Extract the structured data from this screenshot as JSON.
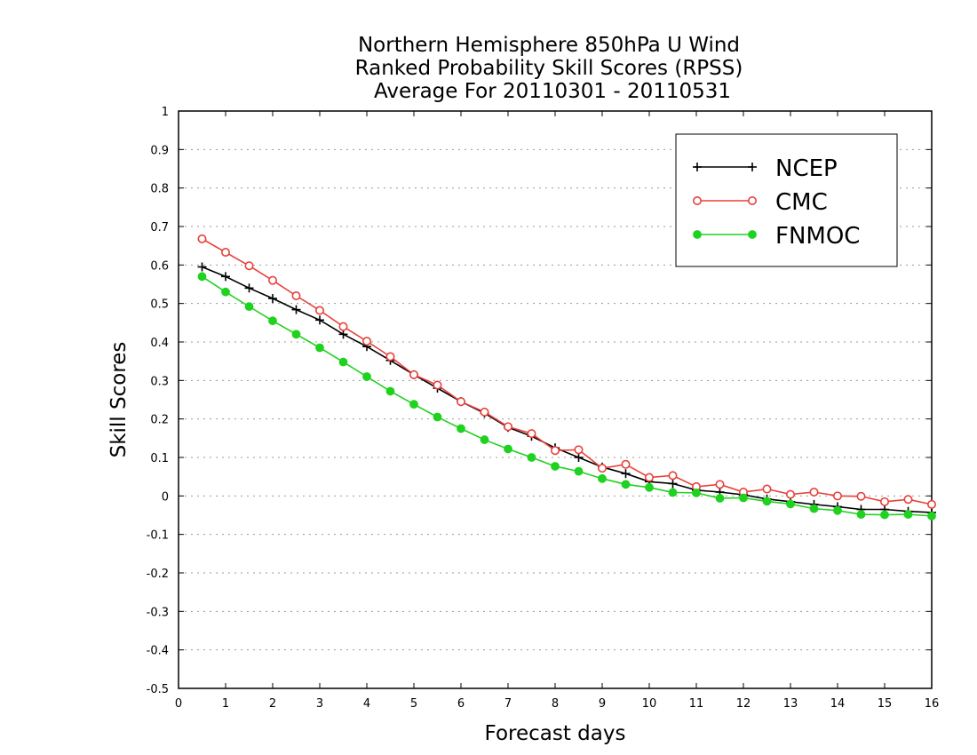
{
  "chart_data": {
    "type": "line",
    "title": [
      "Northern Hemisphere 850hPa U Wind",
      "Ranked Probability Skill Scores (RPSS)",
      "Average For 20110301 - 20110531"
    ],
    "xlabel": "Forecast days",
    "ylabel": "Skill Scores",
    "xlim": [
      0,
      16
    ],
    "ylim": [
      -0.5,
      1
    ],
    "xticks": [
      0,
      1,
      2,
      3,
      4,
      5,
      6,
      7,
      8,
      9,
      10,
      11,
      12,
      13,
      14,
      15,
      16
    ],
    "xtick_labels": [
      "0",
      "1",
      "2",
      "3",
      "4",
      "5",
      "6",
      "7",
      "8",
      "9",
      "10",
      "11",
      "12",
      "13",
      "14",
      "15",
      "16"
    ],
    "yticks": [
      -0.5,
      -0.4,
      -0.3,
      -0.2,
      -0.1,
      0,
      0.1,
      0.2,
      0.3,
      0.4,
      0.5,
      0.6,
      0.7,
      0.8,
      0.9,
      1
    ],
    "ytick_labels": [
      "-0.5",
      "-0.4",
      "-0.3",
      "-0.2",
      "-0.1",
      "0",
      "0.1",
      "0.2",
      "0.3",
      "0.4",
      "0.5",
      "0.6",
      "0.7",
      "0.8",
      "0.9",
      "1"
    ],
    "grid": "horizontal dotted",
    "legend_position": "top-right",
    "x": [
      0.5,
      1,
      1.5,
      2,
      2.5,
      3,
      3.5,
      4,
      4.5,
      5,
      5.5,
      6,
      6.5,
      7,
      7.5,
      8,
      8.5,
      9,
      9.5,
      10,
      10.5,
      11,
      11.5,
      12,
      12.5,
      13,
      13.5,
      14,
      14.5,
      15,
      15.5,
      16
    ],
    "series": [
      {
        "name": "NCEP",
        "color": "#000000",
        "marker": "plus",
        "values": [
          0.595,
          0.57,
          0.54,
          0.513,
          0.484,
          0.457,
          0.42,
          0.388,
          0.352,
          0.315,
          0.28,
          0.245,
          0.215,
          0.178,
          0.155,
          0.125,
          0.1,
          0.075,
          0.058,
          0.037,
          0.032,
          0.015,
          0.01,
          0.003,
          -0.008,
          -0.015,
          -0.022,
          -0.028,
          -0.035,
          -0.035,
          -0.04,
          -0.043
        ]
      },
      {
        "name": "CMC",
        "color": "#e8403a",
        "marker": "open-circle",
        "values": [
          0.668,
          0.633,
          0.598,
          0.56,
          0.52,
          0.482,
          0.44,
          0.402,
          0.362,
          0.315,
          0.288,
          0.245,
          0.218,
          0.18,
          0.162,
          0.118,
          0.12,
          0.072,
          0.082,
          0.048,
          0.053,
          0.024,
          0.03,
          0.01,
          0.018,
          0.004,
          0.01,
          0.0,
          -0.001,
          -0.015,
          -0.009,
          -0.022
        ]
      },
      {
        "name": "FNMOC",
        "color": "#1fd21f",
        "marker": "filled-circle",
        "values": [
          0.57,
          0.53,
          0.492,
          0.455,
          0.42,
          0.385,
          0.348,
          0.31,
          0.272,
          0.238,
          0.205,
          0.175,
          0.146,
          0.122,
          0.1,
          0.077,
          0.064,
          0.045,
          0.03,
          0.022,
          0.009,
          0.008,
          -0.006,
          -0.005,
          -0.014,
          -0.021,
          -0.033,
          -0.038,
          -0.048,
          -0.049,
          -0.048,
          -0.052
        ]
      }
    ]
  }
}
